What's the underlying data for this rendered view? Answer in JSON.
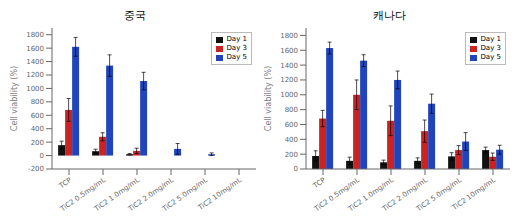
{
  "chart_data": [
    {
      "type": "bar",
      "title": "중국",
      "y_label": "Cell viability (%)",
      "categories": [
        "TCP",
        "TiC2 0.5mg/mL",
        "TiC2 1.0mg/mL",
        "TiC2 2.0mg/mL",
        "TiC2 5.0mg/mL",
        "TiC2 10mg/mL"
      ],
      "series": [
        {
          "name": "Day 1",
          "color": "#111111",
          "values": [
            155,
            65,
            20,
            0,
            0,
            0
          ],
          "errors": [
            60,
            30,
            10,
            5,
            5,
            5
          ]
        },
        {
          "name": "Day 3",
          "color": "#cc2222",
          "values": [
            680,
            280,
            70,
            0,
            0,
            0
          ],
          "errors": [
            170,
            60,
            40,
            10,
            5,
            5
          ]
        },
        {
          "name": "Day 5",
          "color": "#2244bb",
          "values": [
            1620,
            1340,
            1110,
            100,
            20,
            0
          ],
          "errors": [
            140,
            160,
            130,
            80,
            20,
            10
          ]
        }
      ],
      "ylim": [
        -200,
        1900
      ],
      "yticks": [
        -200,
        0,
        200,
        400,
        600,
        800,
        1000,
        1200,
        1400,
        1600,
        1800
      ],
      "grid": false,
      "legend": "upper right"
    },
    {
      "type": "bar",
      "title": "캐나다",
      "y_label": "Cell viability (%)",
      "categories": [
        "TCP",
        "TiC2 0.5mg/mL",
        "TiC2 1.0mg/mL",
        "TiC2 2.0mg/mL",
        "TiC2 5.0mg/mL",
        "TiC2 10mg/mL"
      ],
      "series": [
        {
          "name": "Day 1",
          "color": "#111111",
          "values": [
            175,
            110,
            90,
            110,
            170,
            255
          ],
          "errors": [
            70,
            50,
            30,
            40,
            50,
            40
          ]
        },
        {
          "name": "Day 3",
          "color": "#cc2222",
          "values": [
            680,
            1000,
            650,
            510,
            255,
            165
          ],
          "errors": [
            110,
            200,
            200,
            150,
            60,
            50
          ]
        },
        {
          "name": "Day 5",
          "color": "#2244bb",
          "values": [
            1630,
            1460,
            1200,
            880,
            370,
            260
          ],
          "errors": [
            80,
            80,
            120,
            130,
            120,
            60
          ]
        }
      ],
      "ylim": [
        0,
        1900
      ],
      "yticks": [
        0,
        200,
        400,
        600,
        800,
        1000,
        1200,
        1400,
        1600,
        1800
      ],
      "grid": false,
      "legend": "upper right"
    }
  ]
}
